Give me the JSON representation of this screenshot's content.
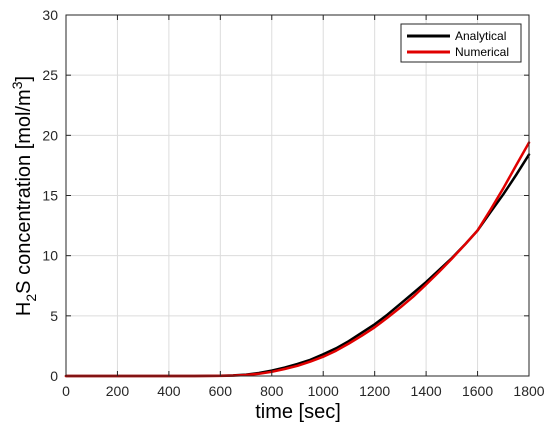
{
  "chart_data": {
    "type": "line",
    "title": "",
    "xlabel": "time [sec]",
    "ylabel": {
      "main": "H",
      "sub": "2",
      "rest": "S concentration [mol/m",
      "sup": "3",
      "close": "]"
    },
    "xlim": [
      0,
      1800
    ],
    "ylim": [
      0,
      30
    ],
    "xticks": [
      0,
      200,
      400,
      600,
      800,
      1000,
      1200,
      1400,
      1600,
      1800
    ],
    "yticks": [
      0,
      5,
      10,
      15,
      20,
      25,
      30
    ],
    "grid": true,
    "legend_position": "top-right",
    "series": [
      {
        "name": "Analytical",
        "color": "#000000",
        "x": [
          0,
          100,
          200,
          300,
          400,
          500,
          600,
          650,
          700,
          750,
          800,
          850,
          900,
          950,
          1000,
          1050,
          1100,
          1150,
          1200,
          1250,
          1300,
          1350,
          1400,
          1450,
          1500,
          1550,
          1600,
          1650,
          1700,
          1750,
          1800
        ],
        "y": [
          0,
          0,
          0,
          0,
          0,
          0,
          0.02,
          0.05,
          0.12,
          0.25,
          0.45,
          0.7,
          1.0,
          1.35,
          1.8,
          2.3,
          2.9,
          3.6,
          4.3,
          5.1,
          6.0,
          6.9,
          7.8,
          8.8,
          9.8,
          10.9,
          12.1,
          13.6,
          15.1,
          16.7,
          18.4
        ]
      },
      {
        "name": "Numerical",
        "color": "#e00000",
        "x": [
          0,
          100,
          200,
          300,
          400,
          500,
          600,
          650,
          700,
          750,
          800,
          850,
          900,
          950,
          1000,
          1050,
          1100,
          1150,
          1200,
          1250,
          1300,
          1350,
          1400,
          1450,
          1500,
          1550,
          1600,
          1650,
          1700,
          1750,
          1800
        ],
        "y": [
          0,
          0,
          0,
          0,
          0,
          0,
          0.01,
          0.03,
          0.08,
          0.18,
          0.35,
          0.58,
          0.85,
          1.2,
          1.6,
          2.1,
          2.7,
          3.35,
          4.05,
          4.85,
          5.7,
          6.6,
          7.6,
          8.65,
          9.75,
          10.9,
          12.1,
          13.8,
          15.6,
          17.5,
          19.4
        ]
      }
    ]
  }
}
